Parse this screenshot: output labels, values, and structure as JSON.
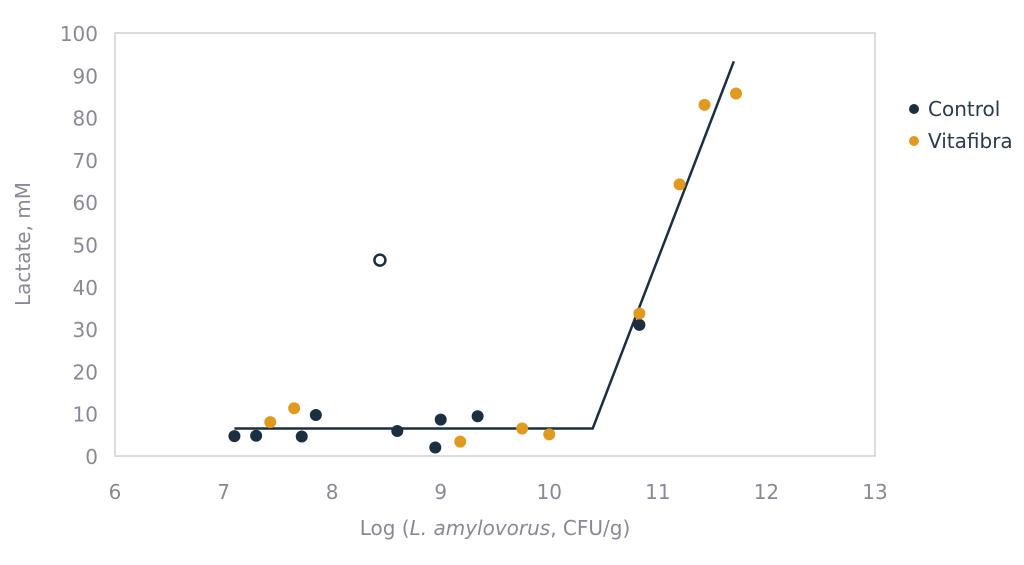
{
  "chart_data": {
    "type": "scatter",
    "title": "",
    "xlabel_parts": {
      "prefix": "Log (",
      "italic": "L. amylovorus",
      "suffix": ", CFU/g)"
    },
    "ylabel": "Lactate, mM",
    "xlim": [
      6,
      13
    ],
    "ylim": [
      0,
      100
    ],
    "x_ticks": [
      6,
      7,
      8,
      9,
      10,
      11,
      12,
      13
    ],
    "y_ticks": [
      0,
      10,
      20,
      30,
      40,
      50,
      60,
      70,
      80,
      90,
      100
    ],
    "grid": false,
    "legend_position": "right",
    "series": [
      {
        "name": "Control",
        "color": "#1b2f40",
        "points": [
          {
            "x": 7.1,
            "y": 4.7
          },
          {
            "x": 7.3,
            "y": 4.8
          },
          {
            "x": 7.72,
            "y": 4.6
          },
          {
            "x": 7.85,
            "y": 9.7
          },
          {
            "x": 8.6,
            "y": 5.9
          },
          {
            "x": 8.95,
            "y": 2.0
          },
          {
            "x": 9.0,
            "y": 8.6
          },
          {
            "x": 9.34,
            "y": 9.4
          },
          {
            "x": 10.83,
            "y": 31.0
          }
        ]
      },
      {
        "name": "Vitafibra",
        "color": "#e09a1f",
        "points": [
          {
            "x": 7.43,
            "y": 8.0
          },
          {
            "x": 7.65,
            "y": 11.3
          },
          {
            "x": 9.18,
            "y": 3.4
          },
          {
            "x": 9.75,
            "y": 6.5
          },
          {
            "x": 10.0,
            "y": 5.1
          },
          {
            "x": 10.83,
            "y": 33.7
          },
          {
            "x": 11.2,
            "y": 64.2
          },
          {
            "x": 11.43,
            "y": 83.0
          },
          {
            "x": 11.72,
            "y": 85.7
          }
        ]
      }
    ],
    "outlier": {
      "x": 8.44,
      "y": 46.3,
      "style": "open-circle",
      "color": "#1b2f40"
    },
    "fit_line": {
      "color": "#1b2f40",
      "points": [
        {
          "x": 7.1,
          "y": 6.5
        },
        {
          "x": 10.4,
          "y": 6.5
        },
        {
          "x": 11.7,
          "y": 93.3
        }
      ]
    }
  }
}
